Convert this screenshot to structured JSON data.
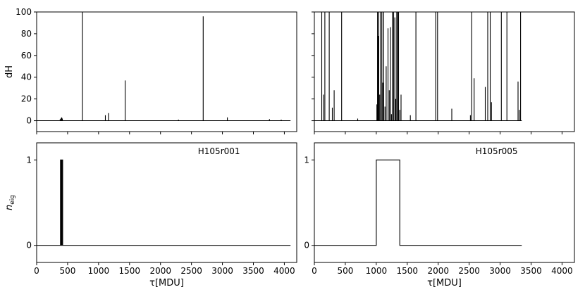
{
  "chart_data": [
    {
      "type": "line",
      "panel": "top-left",
      "ylabel": "dH",
      "xlim": [
        0,
        4200
      ],
      "ylim": [
        -10,
        100
      ],
      "yticks": [
        0,
        20,
        40,
        60,
        80,
        100
      ],
      "xticks": [
        0,
        500,
        1000,
        1500,
        2000,
        2500,
        3000,
        3500,
        4000
      ],
      "x_end": 4100,
      "spikes": [
        [
          380,
          1.5
        ],
        [
          395,
          2.5
        ],
        [
          405,
          3
        ],
        [
          415,
          2
        ],
        [
          740,
          100
        ],
        [
          1110,
          5
        ],
        [
          1160,
          7
        ],
        [
          1430,
          37
        ],
        [
          2290,
          1
        ],
        [
          2690,
          96
        ],
        [
          3080,
          3
        ],
        [
          3760,
          1.5
        ],
        [
          3950,
          1
        ]
      ]
    },
    {
      "type": "line",
      "panel": "top-right",
      "xlim": [
        0,
        4200
      ],
      "ylim": [
        -10,
        100
      ],
      "yticks": [
        0,
        20,
        40,
        60,
        80,
        100
      ],
      "xticks": [
        0,
        500,
        1000,
        1500,
        2000,
        2500,
        3000,
        3500,
        4000
      ],
      "x_end": 3350,
      "spikes": [
        [
          120,
          100
        ],
        [
          150,
          24
        ],
        [
          170,
          100
        ],
        [
          240,
          100
        ],
        [
          290,
          12
        ],
        [
          320,
          28
        ],
        [
          440,
          100
        ],
        [
          700,
          2
        ],
        [
          1010,
          15
        ],
        [
          1020,
          100
        ],
        [
          1030,
          78
        ],
        [
          1040,
          100
        ],
        [
          1055,
          24
        ],
        [
          1070,
          100
        ],
        [
          1090,
          100
        ],
        [
          1105,
          35
        ],
        [
          1120,
          100
        ],
        [
          1140,
          13
        ],
        [
          1160,
          50
        ],
        [
          1190,
          85
        ],
        [
          1210,
          28
        ],
        [
          1230,
          86
        ],
        [
          1245,
          6
        ],
        [
          1260,
          100
        ],
        [
          1280,
          100
        ],
        [
          1300,
          95
        ],
        [
          1315,
          20
        ],
        [
          1330,
          100
        ],
        [
          1345,
          100
        ],
        [
          1360,
          100
        ],
        [
          1380,
          10
        ],
        [
          1400,
          24
        ],
        [
          1550,
          5
        ],
        [
          1640,
          100
        ],
        [
          1960,
          100
        ],
        [
          1990,
          100
        ],
        [
          2220,
          11
        ],
        [
          2520,
          5
        ],
        [
          2540,
          100
        ],
        [
          2580,
          39
        ],
        [
          2760,
          31
        ],
        [
          2800,
          100
        ],
        [
          2840,
          100
        ],
        [
          2860,
          17
        ],
        [
          3020,
          100
        ],
        [
          3110,
          100
        ],
        [
          3290,
          36
        ],
        [
          3310,
          10
        ],
        [
          3330,
          100
        ]
      ]
    },
    {
      "type": "line",
      "panel": "bottom-left",
      "annotation": "H105r001",
      "ylabel": "n_eig",
      "xlabel": "τ[MDU]",
      "xlim": [
        0,
        4200
      ],
      "ylim": [
        -0.2,
        1.2
      ],
      "yticks": [
        0,
        1
      ],
      "xticks": [
        0,
        500,
        1000,
        1500,
        2000,
        2500,
        3000,
        3500,
        4000
      ],
      "x_end": 4100,
      "pulses": [
        [
          385,
          392
        ],
        [
          395,
          402
        ],
        [
          405,
          412
        ],
        [
          414,
          420
        ]
      ]
    },
    {
      "type": "line",
      "panel": "bottom-right",
      "annotation": "H105r005",
      "xlabel": "τ[MDU]",
      "xlim": [
        0,
        4200
      ],
      "ylim": [
        -0.2,
        1.2
      ],
      "yticks": [
        0,
        1
      ],
      "xticks": [
        0,
        500,
        1000,
        1500,
        2000,
        2500,
        3000,
        3500,
        4000
      ],
      "x_end": 3350,
      "pulses": [
        [
          1000,
          1380
        ]
      ]
    }
  ]
}
